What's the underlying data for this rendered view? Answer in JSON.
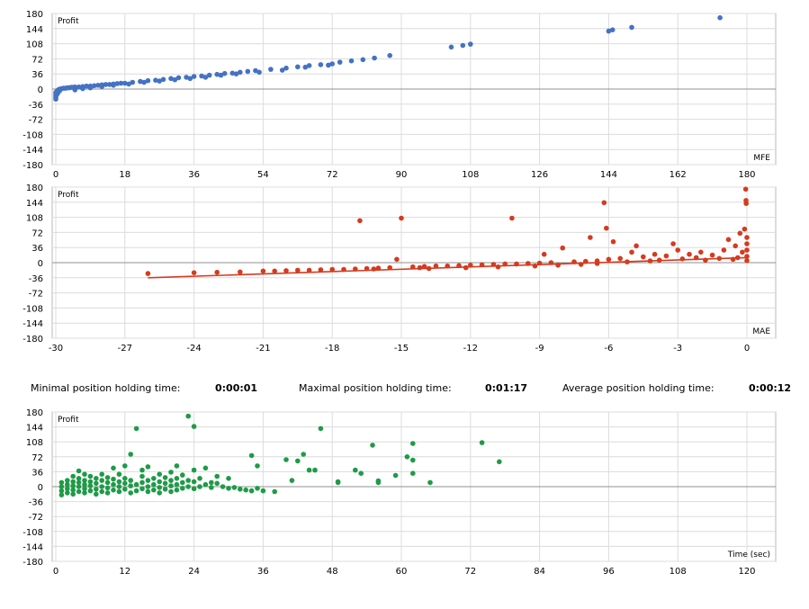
{
  "stats": {
    "min_label": "Minimal position holding time:",
    "min_value": "0:00:01",
    "max_label": "Maximal position holding time:",
    "max_value": "0:01:17",
    "avg_label": "Average position holding time:",
    "avg_value": "0:00:12"
  },
  "chart_data": [
    {
      "type": "scatter",
      "corner_label": "Profit",
      "axis_label": "MFE",
      "color": "#4472C4",
      "xlim": [
        0,
        180
      ],
      "ylim": [
        -180,
        180
      ],
      "xticks": [
        0,
        18,
        36,
        54,
        72,
        90,
        108,
        126,
        144,
        162,
        180
      ],
      "yticks": [
        180,
        144,
        108,
        72,
        36,
        0,
        -36,
        -72,
        -108,
        -144,
        -180
      ],
      "grid": true,
      "points": [
        [
          0,
          -24
        ],
        [
          0,
          -20
        ],
        [
          0,
          -16
        ],
        [
          0,
          -12
        ],
        [
          0,
          -8
        ],
        [
          0.3,
          -5
        ],
        [
          0.5,
          -3
        ],
        [
          0.8,
          -1
        ],
        [
          1,
          0
        ],
        [
          1.5,
          1
        ],
        [
          2,
          2
        ],
        [
          2.5,
          2
        ],
        [
          3,
          3
        ],
        [
          3.5,
          3
        ],
        [
          4,
          4
        ],
        [
          4.5,
          4
        ],
        [
          5,
          5
        ],
        [
          6,
          5
        ],
        [
          7,
          6
        ],
        [
          8,
          7
        ],
        [
          9,
          7
        ],
        [
          10,
          8
        ],
        [
          11,
          9
        ],
        [
          12,
          10
        ],
        [
          13,
          11
        ],
        [
          14,
          11
        ],
        [
          15,
          12
        ],
        [
          16,
          13
        ],
        [
          17,
          14
        ],
        [
          18,
          14
        ],
        [
          20,
          16
        ],
        [
          22,
          18
        ],
        [
          24,
          20
        ],
        [
          26,
          21
        ],
        [
          28,
          23
        ],
        [
          30,
          25
        ],
        [
          32,
          27
        ],
        [
          34,
          28
        ],
        [
          36,
          30
        ],
        [
          38,
          31
        ],
        [
          40,
          33
        ],
        [
          42,
          35
        ],
        [
          44,
          37
        ],
        [
          46,
          38
        ],
        [
          48,
          40
        ],
        [
          50,
          42
        ],
        [
          52,
          44
        ],
        [
          56,
          47
        ],
        [
          60,
          50
        ],
        [
          63,
          53
        ],
        [
          66,
          56
        ],
        [
          69,
          58
        ],
        [
          72,
          60
        ],
        [
          74,
          64
        ],
        [
          77,
          67
        ],
        [
          80,
          70
        ],
        [
          83,
          74
        ],
        [
          87,
          80
        ],
        [
          103,
          100
        ],
        [
          106,
          104
        ],
        [
          108,
          107
        ],
        [
          144,
          138
        ],
        [
          145,
          141
        ],
        [
          150,
          147
        ],
        [
          173,
          170
        ],
        [
          5,
          -2
        ],
        [
          7,
          1
        ],
        [
          9,
          3
        ],
        [
          12,
          6
        ],
        [
          15,
          9
        ],
        [
          19,
          12
        ],
        [
          23,
          16
        ],
        [
          27,
          19
        ],
        [
          31,
          22
        ],
        [
          35,
          25
        ],
        [
          39,
          28
        ],
        [
          43,
          33
        ],
        [
          47,
          36
        ],
        [
          53,
          40
        ],
        [
          59,
          45
        ],
        [
          65,
          52
        ],
        [
          71,
          57
        ],
        [
          0.5,
          -10
        ],
        [
          0.2,
          -14
        ],
        [
          0.4,
          -6
        ],
        [
          1,
          -4
        ]
      ],
      "trendline": false
    },
    {
      "type": "scatter",
      "corner_label": "Profit",
      "axis_label": "MAE",
      "color": "#D63A1F",
      "xlim": [
        -30,
        0
      ],
      "ylim": [
        -180,
        180
      ],
      "xticks": [
        -30,
        -27,
        -24,
        -21,
        -18,
        -15,
        -12,
        -9,
        -6,
        -3,
        0
      ],
      "yticks": [
        180,
        144,
        108,
        72,
        36,
        0,
        -36,
        -72,
        -108,
        -144,
        -180
      ],
      "grid": true,
      "points": [
        [
          -26,
          -26
        ],
        [
          -24,
          -24
        ],
        [
          -23,
          -23
        ],
        [
          -22,
          -22
        ],
        [
          -21,
          -20
        ],
        [
          -20.5,
          -20
        ],
        [
          -20,
          -19
        ],
        [
          -19.5,
          -18
        ],
        [
          -19,
          -18
        ],
        [
          -18.5,
          -17
        ],
        [
          -18,
          -16
        ],
        [
          -17.5,
          -16
        ],
        [
          -17,
          -15
        ],
        [
          -16.8,
          100
        ],
        [
          -16.5,
          -14
        ],
        [
          -16,
          -13
        ],
        [
          -15.5,
          -12
        ],
        [
          -15.2,
          8
        ],
        [
          -15,
          106
        ],
        [
          -14.5,
          -10
        ],
        [
          -14,
          -9
        ],
        [
          -13.5,
          -8
        ],
        [
          -13,
          -8
        ],
        [
          -12.5,
          -7
        ],
        [
          -12,
          -6
        ],
        [
          -11.5,
          -5
        ],
        [
          -11,
          -4
        ],
        [
          -10.5,
          -3
        ],
        [
          -10.2,
          106
        ],
        [
          -10,
          -3
        ],
        [
          -9.5,
          -2
        ],
        [
          -9,
          -1
        ],
        [
          -8.8,
          20
        ],
        [
          -8.5,
          0
        ],
        [
          -8,
          35
        ],
        [
          -7.5,
          2
        ],
        [
          -7,
          3
        ],
        [
          -6.8,
          60
        ],
        [
          -6.5,
          4
        ],
        [
          -6.2,
          143
        ],
        [
          -6.1,
          82
        ],
        [
          -6,
          8
        ],
        [
          -5.8,
          50
        ],
        [
          -5.5,
          10
        ],
        [
          -5,
          25
        ],
        [
          -4.8,
          40
        ],
        [
          -4.5,
          14
        ],
        [
          -4,
          20
        ],
        [
          -3.5,
          16
        ],
        [
          -3.2,
          45
        ],
        [
          -3,
          30
        ],
        [
          -2.5,
          20
        ],
        [
          -2,
          25
        ],
        [
          -1.5,
          18
        ],
        [
          -1,
          30
        ],
        [
          -0.8,
          55
        ],
        [
          -0.5,
          40
        ],
        [
          -0.3,
          70
        ],
        [
          -0.1,
          80
        ],
        [
          -0.05,
          175
        ],
        [
          -0.04,
          148
        ],
        [
          -0.03,
          141
        ],
        [
          0,
          60
        ],
        [
          0,
          45
        ],
        [
          0,
          30
        ],
        [
          0,
          15
        ],
        [
          0,
          5
        ],
        [
          -0.2,
          25
        ],
        [
          -0.4,
          12
        ],
        [
          -0.6,
          8
        ],
        [
          -1.2,
          10
        ],
        [
          -1.8,
          6
        ],
        [
          -2.2,
          12
        ],
        [
          -2.8,
          9
        ],
        [
          -3.8,
          6
        ],
        [
          -4.2,
          4
        ],
        [
          -5.2,
          2
        ],
        [
          -6.5,
          -2
        ],
        [
          -7.2,
          -4
        ],
        [
          -8.2,
          -6
        ],
        [
          -9.2,
          -8
        ],
        [
          -10.8,
          -10
        ],
        [
          -12.2,
          -12
        ],
        [
          -13.8,
          -14
        ],
        [
          -14.2,
          -12
        ],
        [
          -16.2,
          -15
        ]
      ],
      "trendline": true,
      "trend": [
        [
          -26,
          -36
        ],
        [
          0,
          12
        ]
      ]
    },
    {
      "type": "scatter",
      "corner_label": "Profit",
      "axis_label": "Time (sec)",
      "color": "#1E9B47",
      "xlim": [
        0,
        120
      ],
      "ylim": [
        -180,
        180
      ],
      "xticks": [
        0,
        12,
        24,
        36,
        48,
        60,
        72,
        84,
        96,
        108,
        120
      ],
      "yticks": [
        180,
        144,
        108,
        72,
        36,
        0,
        -36,
        -72,
        -108,
        -144,
        -180
      ],
      "grid": true,
      "points": [
        [
          1,
          -20
        ],
        [
          1,
          -10
        ],
        [
          1,
          0
        ],
        [
          1,
          10
        ],
        [
          2,
          -15
        ],
        [
          2,
          -5
        ],
        [
          2,
          5
        ],
        [
          2,
          15
        ],
        [
          3,
          -18
        ],
        [
          3,
          -8
        ],
        [
          3,
          2
        ],
        [
          3,
          12
        ],
        [
          3,
          25
        ],
        [
          4,
          -12
        ],
        [
          4,
          0
        ],
        [
          4,
          10
        ],
        [
          4,
          20
        ],
        [
          4,
          38
        ],
        [
          5,
          -15
        ],
        [
          5,
          -5
        ],
        [
          5,
          5
        ],
        [
          5,
          15
        ],
        [
          5,
          30
        ],
        [
          6,
          -10
        ],
        [
          6,
          2
        ],
        [
          6,
          12
        ],
        [
          6,
          25
        ],
        [
          7,
          -18
        ],
        [
          7,
          -6
        ],
        [
          7,
          8
        ],
        [
          7,
          20
        ],
        [
          8,
          -12
        ],
        [
          8,
          0
        ],
        [
          8,
          15
        ],
        [
          8,
          30
        ],
        [
          9,
          -15
        ],
        [
          9,
          -3
        ],
        [
          9,
          10
        ],
        [
          9,
          22
        ],
        [
          10,
          -8
        ],
        [
          10,
          5
        ],
        [
          10,
          18
        ],
        [
          10,
          45
        ],
        [
          11,
          -12
        ],
        [
          11,
          0
        ],
        [
          11,
          12
        ],
        [
          11,
          30
        ],
        [
          12,
          -6
        ],
        [
          12,
          8
        ],
        [
          12,
          20
        ],
        [
          12,
          50
        ],
        [
          13,
          -15
        ],
        [
          13,
          2
        ],
        [
          13,
          15
        ],
        [
          13,
          78
        ],
        [
          14,
          -10
        ],
        [
          14,
          5
        ],
        [
          14,
          140
        ],
        [
          15,
          -5
        ],
        [
          15,
          10
        ],
        [
          15,
          25
        ],
        [
          15,
          40
        ],
        [
          16,
          -12
        ],
        [
          16,
          0
        ],
        [
          16,
          15
        ],
        [
          16,
          48
        ],
        [
          17,
          -8
        ],
        [
          17,
          5
        ],
        [
          17,
          20
        ],
        [
          18,
          -15
        ],
        [
          18,
          -2
        ],
        [
          18,
          12
        ],
        [
          18,
          30
        ],
        [
          19,
          -6
        ],
        [
          19,
          8
        ],
        [
          19,
          22
        ],
        [
          20,
          -12
        ],
        [
          20,
          2
        ],
        [
          20,
          15
        ],
        [
          20,
          35
        ],
        [
          21,
          -8
        ],
        [
          21,
          5
        ],
        [
          21,
          20
        ],
        [
          21,
          50
        ],
        [
          22,
          -4
        ],
        [
          22,
          10
        ],
        [
          22,
          28
        ],
        [
          23,
          0
        ],
        [
          23,
          15
        ],
        [
          23,
          170
        ],
        [
          24,
          -5
        ],
        [
          24,
          12
        ],
        [
          24,
          40
        ],
        [
          24,
          145
        ],
        [
          25,
          0
        ],
        [
          25,
          20
        ],
        [
          26,
          5
        ],
        [
          26,
          45
        ],
        [
          27,
          -2
        ],
        [
          27,
          10
        ],
        [
          28,
          8
        ],
        [
          28,
          25
        ],
        [
          29,
          0
        ],
        [
          30,
          -4
        ],
        [
          30,
          20
        ],
        [
          31,
          -2
        ],
        [
          32,
          -6
        ],
        [
          33,
          -8
        ],
        [
          34,
          -10
        ],
        [
          34,
          75
        ],
        [
          35,
          -4
        ],
        [
          35,
          50
        ],
        [
          36,
          -10
        ],
        [
          38,
          -12
        ],
        [
          40,
          65
        ],
        [
          41,
          15
        ],
        [
          42,
          62
        ],
        [
          43,
          78
        ],
        [
          44,
          40
        ],
        [
          45,
          40
        ],
        [
          46,
          140
        ],
        [
          49,
          12
        ],
        [
          49,
          10
        ],
        [
          52,
          40
        ],
        [
          53,
          32
        ],
        [
          55,
          100
        ],
        [
          56,
          14
        ],
        [
          56,
          10
        ],
        [
          59,
          27
        ],
        [
          61,
          72
        ],
        [
          62,
          64
        ],
        [
          62,
          104
        ],
        [
          62,
          32
        ],
        [
          65,
          10
        ],
        [
          74,
          106
        ],
        [
          77,
          60
        ]
      ],
      "trendline": false
    }
  ]
}
